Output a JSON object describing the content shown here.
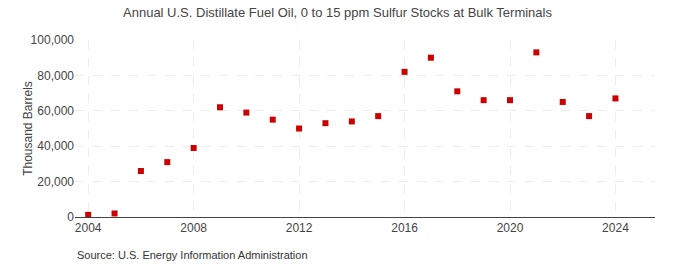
{
  "chart_data": {
    "type": "scatter",
    "title": "Annual U.S. Distillate Fuel Oil, 0 to 15 ppm Sulfur Stocks at Bulk Terminals",
    "ylabel": "Thousand Barrels",
    "source": "Source: U.S. Energy Information Administration",
    "x": [
      2004,
      2005,
      2006,
      2007,
      2008,
      2009,
      2010,
      2011,
      2012,
      2013,
      2014,
      2015,
      2016,
      2017,
      2018,
      2019,
      2020,
      2021,
      2022,
      2023,
      2024
    ],
    "values": [
      1200,
      2000,
      26000,
      31000,
      39000,
      62000,
      59000,
      55000,
      50000,
      53000,
      54000,
      57000,
      82000,
      90000,
      71000,
      66000,
      66000,
      93000,
      65000,
      57000,
      67000
    ],
    "color": "#cc0000",
    "marker": "square",
    "xlim": [
      2003.5,
      2025.5
    ],
    "xticks": [
      2004,
      2008,
      2012,
      2016,
      2020,
      2024
    ],
    "ylim": [
      0,
      100000
    ],
    "yticks": [
      0,
      {
        "value": 20000,
        "label": "20,000"
      },
      {
        "value": 40000,
        "label": "40,000"
      },
      {
        "value": 60000,
        "label": "60,000"
      },
      {
        "value": 80000,
        "label": "80,000"
      },
      {
        "value": 100000,
        "label": "100,000"
      }
    ],
    "grid": true
  }
}
